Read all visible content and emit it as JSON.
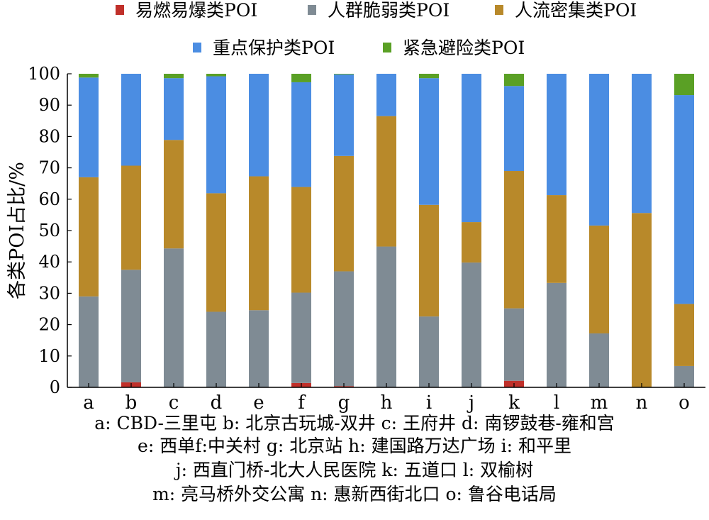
{
  "chart_data": {
    "type": "bar",
    "stacked": true,
    "categories": [
      "a",
      "b",
      "c",
      "d",
      "e",
      "f",
      "g",
      "h",
      "i",
      "j",
      "k",
      "l",
      "m",
      "n",
      "o"
    ],
    "ylabel": "各类POI占比/%",
    "ylim": [
      0,
      100
    ],
    "yticks": [
      0,
      10,
      20,
      30,
      40,
      50,
      60,
      70,
      80,
      90,
      100
    ],
    "legend_position": "top",
    "series": [
      {
        "name": "易燃易爆类POI",
        "color": "#c0302a",
        "values": [
          0,
          1.6,
          0,
          0,
          0,
          1.4,
          0.4,
          0,
          0,
          0,
          2.1,
          0,
          0,
          0,
          0
        ]
      },
      {
        "name": "人群脆弱类POI",
        "color": "#7f8b94",
        "values": [
          29.0,
          35.9,
          44.3,
          24.1,
          24.6,
          28.8,
          36.6,
          44.9,
          22.6,
          39.8,
          23.1,
          33.3,
          17.2,
          0,
          6.8
        ]
      },
      {
        "name": "人流密集类POI",
        "color": "#b8892a",
        "values": [
          38.0,
          33.2,
          34.6,
          37.8,
          42.7,
          33.7,
          36.8,
          41.6,
          35.6,
          12.9,
          43.8,
          28.0,
          34.4,
          55.6,
          19.8
        ]
      },
      {
        "name": "重点保护类POI",
        "color": "#4b8de2",
        "values": [
          31.8,
          29.3,
          19.7,
          37.3,
          32.7,
          33.4,
          26.0,
          13.5,
          40.4,
          47.3,
          27.1,
          38.7,
          48.4,
          44.4,
          66.6
        ]
      },
      {
        "name": "紧急避险类POI",
        "color": "#5aa025",
        "values": [
          1.2,
          0,
          1.4,
          0.8,
          0,
          2.7,
          0.2,
          0,
          1.4,
          0,
          3.9,
          0,
          0,
          0,
          6.8
        ]
      }
    ]
  },
  "caption": {
    "lines": [
      "a: CBD-三里屯 b: 北京古玩城-双井 c: 王府井 d: 南锣鼓巷-雍和宫",
      "e: 西单f:中关村 g: 北京站 h: 建国路万达广场 i: 和平里",
      "j: 西直门桥-北大人民医院 k: 五道口 l: 双榆树",
      "m: 亮马桥外交公寓 n: 惠新西街北口 o: 鲁谷电话局"
    ]
  }
}
